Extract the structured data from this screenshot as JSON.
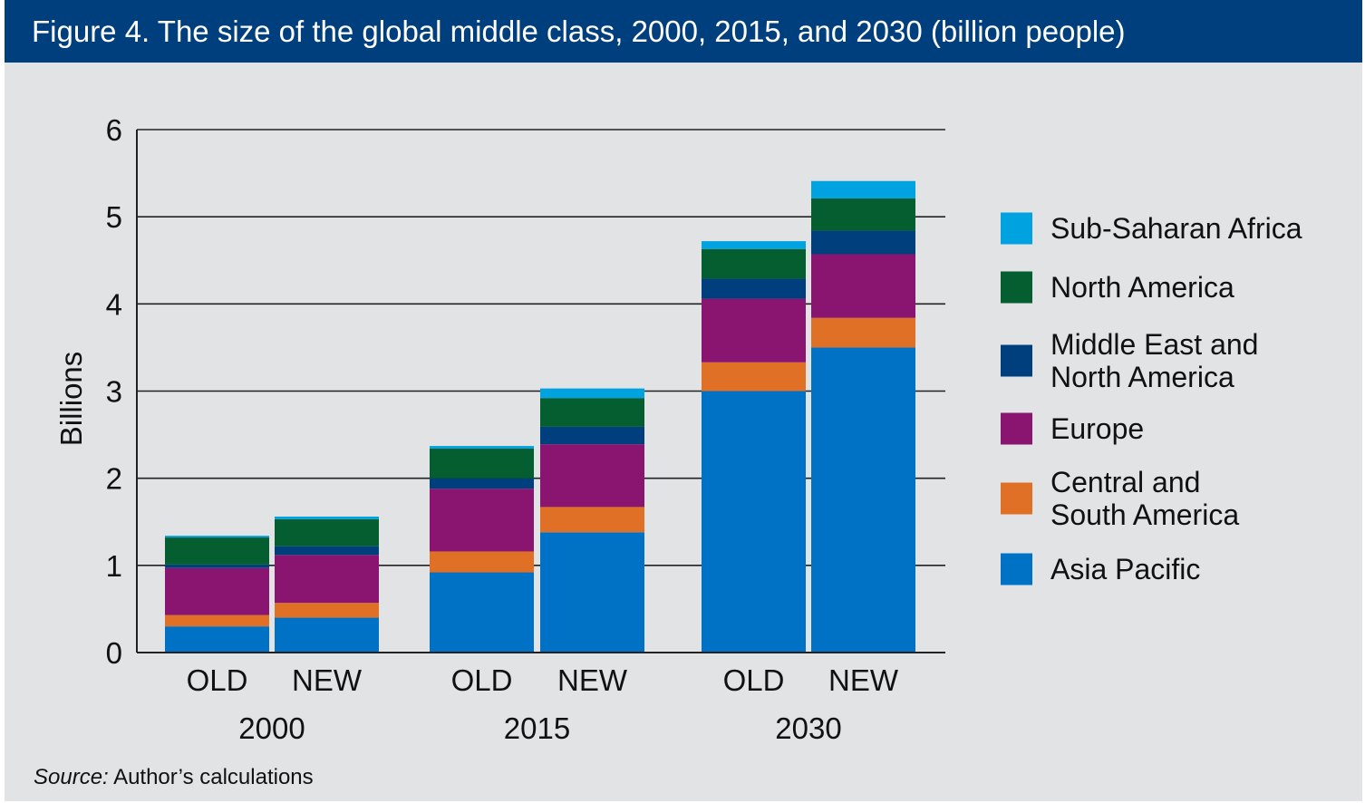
{
  "figure": {
    "title": "Figure 4. The size of the global middle class, 2000, 2015, and 2030 (billion people)",
    "source_label": "Source:",
    "source_text": " Author’s calculations"
  },
  "chart_data": {
    "type": "bar",
    "stacked": true,
    "ylabel": "Billions",
    "ylim": [
      0,
      6
    ],
    "yticks": [
      0,
      1,
      2,
      3,
      4,
      5,
      6
    ],
    "grid": true,
    "legend_position": "right",
    "groups": [
      {
        "label": "2000",
        "bars": [
          "OLD",
          "NEW"
        ]
      },
      {
        "label": "2015",
        "bars": [
          "OLD",
          "NEW"
        ]
      },
      {
        "label": "2030",
        "bars": [
          "OLD",
          "NEW"
        ]
      }
    ],
    "categories": [
      "2000 OLD",
      "2000 NEW",
      "2015 OLD",
      "2015 NEW",
      "2030 OLD",
      "2030 NEW"
    ],
    "series": [
      {
        "name": "Asia Pacific",
        "color": "#0072c6",
        "values": [
          0.3,
          0.4,
          0.92,
          1.38,
          3.0,
          3.5
        ]
      },
      {
        "name": "Central and South America",
        "color": "#e07025",
        "values": [
          0.13,
          0.17,
          0.24,
          0.29,
          0.33,
          0.34
        ]
      },
      {
        "name": "Europe",
        "color": "#8a1571",
        "values": [
          0.54,
          0.55,
          0.72,
          0.72,
          0.73,
          0.73
        ]
      },
      {
        "name": "Middle East and North America",
        "color": "#003f7d",
        "values": [
          0.04,
          0.1,
          0.12,
          0.2,
          0.23,
          0.27
        ]
      },
      {
        "name": "North America",
        "color": "#045e30",
        "values": [
          0.31,
          0.31,
          0.34,
          0.33,
          0.34,
          0.37
        ]
      },
      {
        "name": "Sub-Saharan Africa",
        "color": "#00a3e0",
        "values": [
          0.02,
          0.03,
          0.03,
          0.11,
          0.09,
          0.2
        ]
      }
    ],
    "legend_lines": [
      [
        "Sub-Saharan Africa"
      ],
      [
        "North America"
      ],
      [
        "Middle East and",
        "North America"
      ],
      [
        "Europe"
      ],
      [
        "Central and",
        "South America"
      ],
      [
        "Asia Pacific"
      ]
    ]
  }
}
